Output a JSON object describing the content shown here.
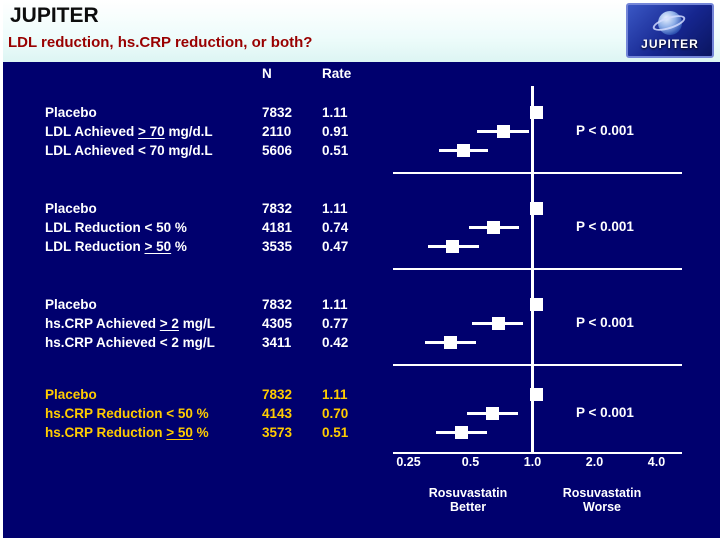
{
  "header": {
    "title": "JUPITER",
    "subtitle": "LDL reduction, hs.CRP reduction, or both?"
  },
  "logo": {
    "text": "JUPITER"
  },
  "table": {
    "col_n": "N",
    "col_rate": "Rate"
  },
  "chart_data": {
    "type": "scatter",
    "subtype": "forest-plot",
    "x_scale": "log2",
    "xlim": [
      0.25,
      4.0
    ],
    "x_tick_values": [
      0.25,
      0.5,
      1.0,
      2.0,
      4.0
    ],
    "x_ticks": [
      "0.25",
      "0.5",
      "1.0",
      "2.0",
      "4.0"
    ],
    "reference_line": 1.0,
    "left_note": [
      "Rosuvastatin",
      "Better"
    ],
    "right_note": [
      "Rosuvastatin",
      "Worse"
    ],
    "groups": [
      {
        "text_color": "#ffffff",
        "p_label": "P < 0.001",
        "rows": [
          {
            "label": [
              {
                "t": "Placebo"
              }
            ],
            "n": "7832",
            "rate": "1.11",
            "hr": 1.05,
            "ci": null
          },
          {
            "label": [
              {
                "t": "LDL Achieved "
              },
              {
                "t": "> 70",
                "u": true
              },
              {
                "t": " mg/d.L"
              }
            ],
            "n": "2110",
            "rate": "0.91",
            "hr": 0.72,
            "ci": [
              0.54,
              0.96
            ]
          },
          {
            "label": [
              {
                "t": "LDL Achieved < 70 mg/d.L"
              }
            ],
            "n": "5606",
            "rate": "0.51",
            "hr": 0.46,
            "ci": [
              0.35,
              0.61
            ]
          }
        ]
      },
      {
        "text_color": "#ffffff",
        "p_label": "P < 0.001",
        "rows": [
          {
            "label": [
              {
                "t": "Placebo"
              }
            ],
            "n": "7832",
            "rate": "1.11",
            "hr": 1.05,
            "ci": null
          },
          {
            "label": [
              {
                "t": "LDL Reduction < 50 %"
              }
            ],
            "n": "4181",
            "rate": "0.74",
            "hr": 0.65,
            "ci": [
              0.49,
              0.86
            ]
          },
          {
            "label": [
              {
                "t": "LDL Reduction "
              },
              {
                "t": "> 50",
                "u": true
              },
              {
                "t": " %"
              }
            ],
            "n": "3535",
            "rate": "0.47",
            "hr": 0.41,
            "ci": [
              0.31,
              0.55
            ]
          }
        ]
      },
      {
        "text_color": "#ffffff",
        "p_label": "P < 0.001",
        "rows": [
          {
            "label": [
              {
                "t": "Placebo"
              }
            ],
            "n": "7832",
            "rate": "1.11",
            "hr": 1.05,
            "ci": null
          },
          {
            "label": [
              {
                "t": "hs.CRP Achieved "
              },
              {
                "t": "> 2",
                "u": true
              },
              {
                "t": " mg/L"
              }
            ],
            "n": "4305",
            "rate": "0.77",
            "hr": 0.68,
            "ci": [
              0.51,
              0.9
            ]
          },
          {
            "label": [
              {
                "t": "hs.CRP Achieved < 2 mg/L"
              }
            ],
            "n": "3411",
            "rate": "0.42",
            "hr": 0.4,
            "ci": [
              0.3,
              0.53
            ]
          }
        ]
      },
      {
        "text_color": "#ffcc00",
        "p_label": "P < 0.001",
        "rows": [
          {
            "label": [
              {
                "t": "Placebo"
              }
            ],
            "n": "7832",
            "rate": "1.11",
            "hr": 1.05,
            "ci": null
          },
          {
            "label": [
              {
                "t": "hs.CRP Reduction < 50 %"
              }
            ],
            "n": "4143",
            "rate": "0.70",
            "hr": 0.64,
            "ci": [
              0.48,
              0.85
            ]
          },
          {
            "label": [
              {
                "t": "hs.CRP Reduction "
              },
              {
                "t": "> 50",
                "u": true
              },
              {
                "t": " %"
              }
            ],
            "n": "3573",
            "rate": "0.51",
            "hr": 0.45,
            "ci": [
              0.34,
              0.6
            ]
          }
        ]
      }
    ]
  }
}
